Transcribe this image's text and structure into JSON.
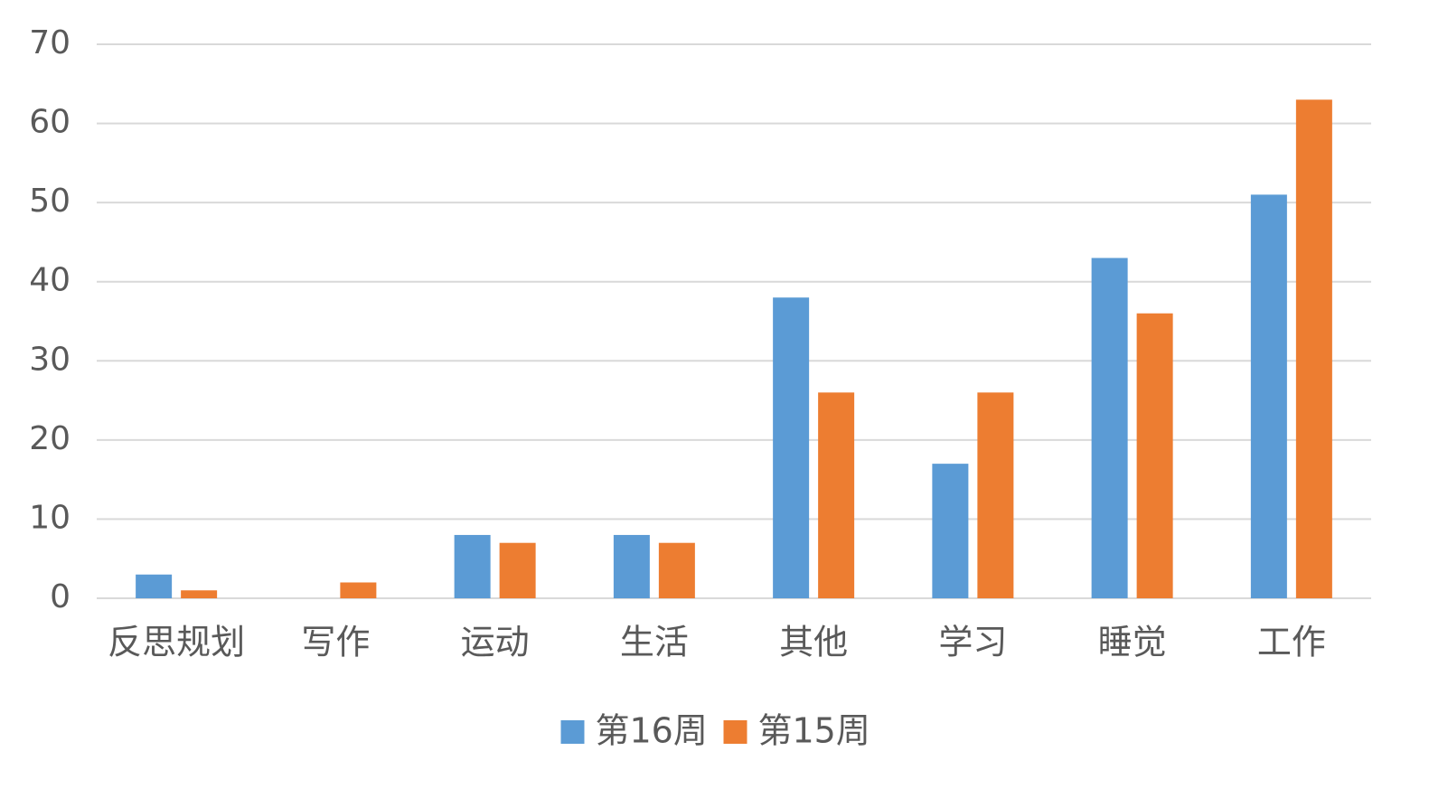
{
  "chart_data": {
    "type": "bar",
    "categories": [
      "反思规划",
      "写作",
      "运动",
      "生活",
      "其他",
      "学习",
      "睡觉",
      "工作"
    ],
    "series": [
      {
        "name": "第16周",
        "color": "#5b9bd5",
        "values": [
          3,
          0,
          8,
          8,
          38,
          17,
          43,
          51
        ]
      },
      {
        "name": "第15周",
        "color": "#ed7d31",
        "values": [
          1,
          2,
          7,
          7,
          26,
          26,
          36,
          63
        ]
      }
    ],
    "ylim": [
      0,
      70
    ],
    "yticks": [
      0,
      10,
      20,
      30,
      40,
      50,
      60,
      70
    ],
    "grid": true,
    "legend": "bottom"
  }
}
